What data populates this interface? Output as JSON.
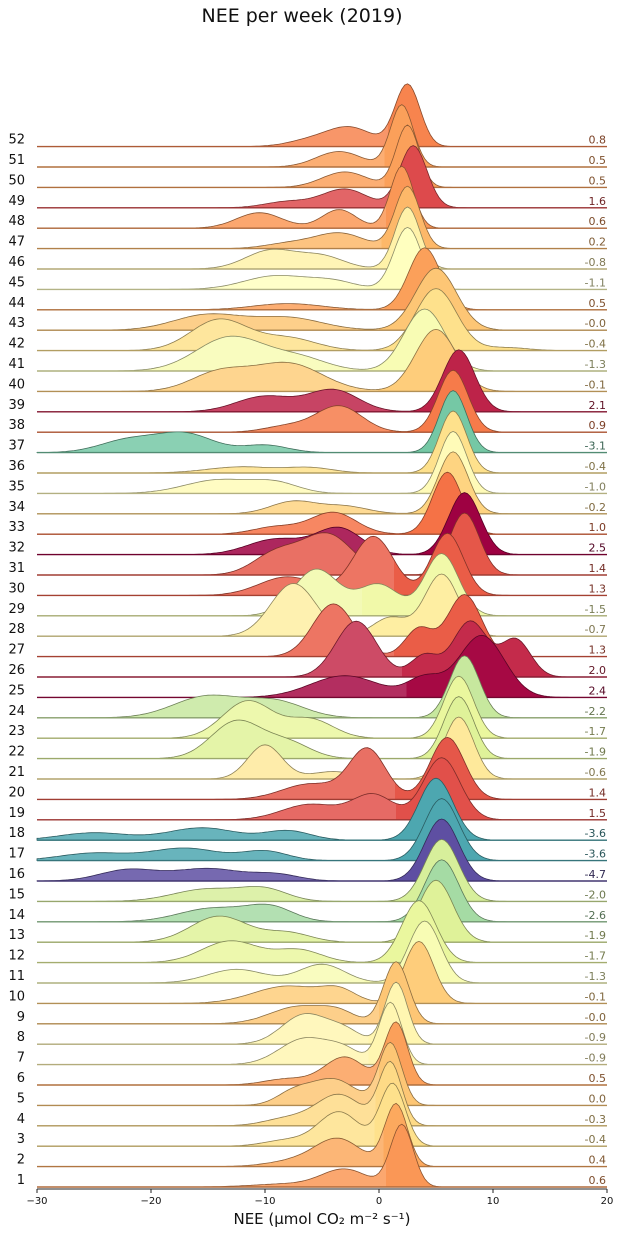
{
  "chart_data": {
    "type": "ridgeline",
    "title": "NEE per week (2019)",
    "xlabel": "NEE (μmol CO₂ m⁻² s⁻¹)",
    "xlim": [
      -30,
      20
    ],
    "x_ticks": [
      -30,
      -20,
      -10,
      0,
      10,
      20
    ],
    "colormap_range": [
      -4.7,
      2.5
    ],
    "weeks": [
      {
        "week": "1",
        "value": 0.6,
        "label": "0.6",
        "peaks": [
          [
            2.0,
            1.0,
            1.0
          ],
          [
            -3.0,
            0.28,
            2.0
          ],
          [
            -8.0,
            0.05,
            3.0
          ]
        ]
      },
      {
        "week": "2",
        "value": 0.4,
        "label": "0.4",
        "peaks": [
          [
            1.5,
            1.0,
            1.0
          ],
          [
            -3.5,
            0.42,
            2.0
          ],
          [
            -7.0,
            0.1,
            2.5
          ]
        ]
      },
      {
        "week": "3",
        "value": -0.4,
        "label": "-0.4",
        "peaks": [
          [
            1.2,
            1.0,
            1.1
          ],
          [
            -3.5,
            0.55,
            1.8
          ],
          [
            -8.0,
            0.1,
            2.0
          ]
        ]
      },
      {
        "week": "4",
        "value": -0.3,
        "label": "-0.3",
        "peaks": [
          [
            1.0,
            1.0,
            1.0
          ],
          [
            -3.5,
            0.5,
            2.0
          ],
          [
            -8.0,
            0.12,
            2.0
          ]
        ]
      },
      {
        "week": "5",
        "value": 0.0,
        "label": "0.0",
        "peaks": [
          [
            1.0,
            1.0,
            1.0
          ],
          [
            -4.0,
            0.42,
            2.0
          ],
          [
            -7.5,
            0.2,
            1.5
          ]
        ]
      },
      {
        "week": "6",
        "value": 0.5,
        "label": "0.5",
        "peaks": [
          [
            1.5,
            1.0,
            1.0
          ],
          [
            -3.0,
            0.45,
            1.8
          ],
          [
            -8.0,
            0.1,
            2.0
          ]
        ]
      },
      {
        "week": "7",
        "value": -0.9,
        "label": "-0.9",
        "peaks": [
          [
            1.0,
            1.0,
            1.0
          ],
          [
            -6.5,
            0.42,
            2.2
          ],
          [
            -3.0,
            0.2,
            1.5
          ]
        ]
      },
      {
        "week": "8",
        "value": -0.9,
        "label": "-0.9",
        "peaks": [
          [
            1.5,
            1.0,
            1.0
          ],
          [
            -6.5,
            0.48,
            2.0
          ],
          [
            -3.0,
            0.2,
            1.5
          ]
        ]
      },
      {
        "week": "9",
        "value": -0.0,
        "label": "-0.0",
        "peaks": [
          [
            1.5,
            1.0,
            1.1
          ],
          [
            -7.0,
            0.28,
            2.5
          ],
          [
            -3.5,
            0.15,
            1.5
          ]
        ]
      },
      {
        "week": "10",
        "value": -0.1,
        "label": "-0.1",
        "peaks": [
          [
            3.5,
            1.0,
            1.3
          ],
          [
            -8.0,
            0.28,
            3.0
          ],
          [
            -3.5,
            0.18,
            1.5
          ]
        ]
      },
      {
        "week": "11",
        "value": -1.3,
        "label": "-1.3",
        "peaks": [
          [
            4.0,
            1.0,
            1.4
          ],
          [
            -5.0,
            0.3,
            2.0
          ],
          [
            -12.5,
            0.22,
            2.5
          ]
        ]
      },
      {
        "week": "12",
        "value": -1.7,
        "label": "-1.7",
        "peaks": [
          [
            3.5,
            1.0,
            1.5
          ],
          [
            -13.0,
            0.35,
            2.5
          ],
          [
            -7.0,
            0.2,
            2.0
          ]
        ]
      },
      {
        "week": "13",
        "value": -1.9,
        "label": "-1.9",
        "peaks": [
          [
            5.0,
            1.0,
            1.5
          ],
          [
            -14.0,
            0.42,
            2.5
          ],
          [
            -8.0,
            0.15,
            2.0
          ]
        ]
      },
      {
        "week": "14",
        "value": -2.6,
        "label": "-2.6",
        "peaks": [
          [
            5.5,
            1.0,
            1.5
          ],
          [
            -14.5,
            0.22,
            3.0
          ],
          [
            -9.5,
            0.22,
            2.0
          ]
        ]
      },
      {
        "week": "15",
        "value": -2.0,
        "label": "-2.0",
        "peaks": [
          [
            5.5,
            1.0,
            1.5
          ],
          [
            -15.0,
            0.2,
            3.0
          ],
          [
            -10.0,
            0.18,
            2.0
          ]
        ]
      },
      {
        "week": "16",
        "value": -4.7,
        "label": "-4.7",
        "peaks": [
          [
            5.5,
            1.0,
            1.5
          ],
          [
            -22.0,
            0.18,
            2.5
          ],
          [
            -15.0,
            0.2,
            3.0
          ],
          [
            -9.0,
            0.1,
            2.0
          ]
        ]
      },
      {
        "week": "17",
        "value": -3.6,
        "label": "-3.6",
        "peaks": [
          [
            5.5,
            1.0,
            1.5
          ],
          [
            -25.0,
            0.12,
            3.0
          ],
          [
            -17.0,
            0.2,
            3.0
          ],
          [
            -10.0,
            0.15,
            2.0
          ]
        ]
      },
      {
        "week": "18",
        "value": -3.6,
        "label": "-3.6",
        "peaks": [
          [
            5.0,
            1.0,
            1.5
          ],
          [
            -25.0,
            0.12,
            3.0
          ],
          [
            -15.5,
            0.2,
            3.0
          ],
          [
            -8.0,
            0.15,
            2.0
          ]
        ]
      },
      {
        "week": "19",
        "value": 1.5,
        "label": "1.5",
        "peaks": [
          [
            5.5,
            1.0,
            1.6
          ],
          [
            -0.5,
            0.4,
            1.8
          ],
          [
            -6.0,
            0.25,
            2.5
          ]
        ]
      },
      {
        "week": "20",
        "value": 1.4,
        "label": "1.4",
        "peaks": [
          [
            6.0,
            1.0,
            1.5
          ],
          [
            -1.0,
            0.8,
            1.6
          ],
          [
            -6.0,
            0.25,
            2.5
          ]
        ]
      },
      {
        "week": "21",
        "value": -0.6,
        "label": "-0.6",
        "peaks": [
          [
            7.0,
            1.0,
            1.3
          ],
          [
            -10.0,
            0.55,
            1.5
          ],
          [
            -4.0,
            0.12,
            2.0
          ]
        ]
      },
      {
        "week": "22",
        "value": -1.9,
        "label": "-1.9",
        "peaks": [
          [
            7.0,
            1.0,
            1.3
          ],
          [
            -12.5,
            0.6,
            2.2
          ],
          [
            -8.0,
            0.25,
            2.0
          ]
        ]
      },
      {
        "week": "23",
        "value": -1.7,
        "label": "-1.7",
        "peaks": [
          [
            7.0,
            1.0,
            1.3
          ],
          [
            -11.5,
            0.6,
            2.2
          ],
          [
            -6.0,
            0.3,
            2.0
          ]
        ]
      },
      {
        "week": "24",
        "value": -2.2,
        "label": "-2.2",
        "peaks": [
          [
            7.5,
            1.0,
            1.3
          ],
          [
            -15.0,
            0.35,
            3.0
          ],
          [
            -9.0,
            0.25,
            2.5
          ]
        ]
      },
      {
        "week": "25",
        "value": 2.4,
        "label": "2.4",
        "peaks": [
          [
            9.0,
            1.0,
            2.0
          ],
          [
            -3.0,
            0.35,
            3.0
          ],
          [
            4.0,
            0.3,
            1.5
          ]
        ]
      },
      {
        "week": "26",
        "value": 2.0,
        "label": "2.0",
        "peaks": [
          [
            8.0,
            0.9,
            1.5
          ],
          [
            -2.0,
            0.9,
            1.8
          ],
          [
            12.0,
            0.6,
            1.3
          ],
          [
            4.0,
            0.35,
            1.2
          ]
        ]
      },
      {
        "week": "27",
        "value": 1.3,
        "label": "1.3",
        "peaks": [
          [
            7.5,
            1.0,
            1.5
          ],
          [
            -4.0,
            0.85,
            1.8
          ],
          [
            3.5,
            0.45,
            1.2
          ]
        ]
      },
      {
        "week": "28",
        "value": -0.7,
        "label": "-0.7",
        "peaks": [
          [
            5.5,
            1.0,
            1.5
          ],
          [
            -7.5,
            0.85,
            2.0
          ],
          [
            1.0,
            0.3,
            1.5
          ]
        ]
      },
      {
        "week": "29",
        "value": -1.5,
        "label": "-1.5",
        "peaks": [
          [
            5.5,
            1.0,
            1.5
          ],
          [
            -5.5,
            0.75,
            2.0
          ],
          [
            0.0,
            0.5,
            1.8
          ]
        ]
      },
      {
        "week": "30",
        "value": 1.3,
        "label": "1.3",
        "peaks": [
          [
            6.0,
            1.0,
            1.4
          ],
          [
            -0.5,
            0.95,
            1.8
          ],
          [
            -8.0,
            0.3,
            2.5
          ]
        ]
      },
      {
        "week": "31",
        "value": 1.4,
        "label": "1.4",
        "peaks": [
          [
            7.5,
            1.0,
            1.3
          ],
          [
            -4.5,
            0.65,
            2.2
          ],
          [
            -9.0,
            0.35,
            2.0
          ]
        ]
      },
      {
        "week": "32",
        "value": 2.5,
        "label": "2.5",
        "peaks": [
          [
            7.5,
            1.0,
            1.4
          ],
          [
            -3.5,
            0.42,
            2.0
          ],
          [
            -9.0,
            0.25,
            2.5
          ]
        ]
      },
      {
        "week": "33",
        "value": 1.0,
        "label": "1.0",
        "peaks": [
          [
            6.0,
            1.0,
            1.3
          ],
          [
            -4.0,
            0.35,
            2.0
          ],
          [
            -9.0,
            0.12,
            2.0
          ]
        ]
      },
      {
        "week": "34",
        "value": -0.2,
        "label": "-0.2",
        "peaks": [
          [
            6.5,
            1.0,
            1.3
          ],
          [
            -7.5,
            0.2,
            2.0
          ],
          [
            -3.0,
            0.12,
            2.0
          ]
        ]
      },
      {
        "week": "35",
        "value": -1.0,
        "label": "-1.0",
        "peaks": [
          [
            6.5,
            1.0,
            1.2
          ],
          [
            -14.0,
            0.22,
            3.0
          ],
          [
            -9.0,
            0.15,
            2.0
          ]
        ]
      },
      {
        "week": "36",
        "value": -0.4,
        "label": "-0.4",
        "peaks": [
          [
            6.5,
            1.0,
            1.2
          ],
          [
            -12.0,
            0.1,
            3.0
          ],
          [
            -6.0,
            0.08,
            2.0
          ]
        ]
      },
      {
        "week": "37",
        "value": -3.1,
        "label": "-3.1",
        "peaks": [
          [
            6.5,
            1.0,
            1.2
          ],
          [
            -17.0,
            0.3,
            2.5
          ],
          [
            -22.0,
            0.2,
            2.5
          ],
          [
            -10.0,
            0.12,
            2.0
          ]
        ]
      },
      {
        "week": "38",
        "value": 0.9,
        "label": "0.9",
        "peaks": [
          [
            6.5,
            1.0,
            1.3
          ],
          [
            -3.5,
            0.42,
            2.0
          ],
          [
            -8.0,
            0.1,
            2.0
          ]
        ]
      },
      {
        "week": "39",
        "value": 2.1,
        "label": "2.1",
        "peaks": [
          [
            7.0,
            1.0,
            1.4
          ],
          [
            -4.0,
            0.35,
            2.2
          ],
          [
            -10.0,
            0.25,
            2.5
          ]
        ]
      },
      {
        "week": "40",
        "value": -0.1,
        "label": "-0.1",
        "peaks": [
          [
            5.0,
            1.0,
            1.8
          ],
          [
            -8.0,
            0.45,
            3.0
          ],
          [
            -14.0,
            0.3,
            2.5
          ]
        ]
      },
      {
        "week": "41",
        "value": -1.3,
        "label": "-1.3",
        "peaks": [
          [
            4.0,
            1.0,
            1.8
          ],
          [
            -13.0,
            0.55,
            3.0
          ],
          [
            -7.0,
            0.2,
            2.5
          ]
        ]
      },
      {
        "week": "42",
        "value": -0.4,
        "label": "-0.4",
        "peaks": [
          [
            5.0,
            1.0,
            1.8
          ],
          [
            -14.0,
            0.5,
            2.5
          ],
          [
            -8.0,
            0.2,
            2.5
          ],
          [
            11.0,
            0.05,
            2.0
          ]
        ]
      },
      {
        "week": "43",
        "value": -0.0,
        "label": "-0.0",
        "peaks": [
          [
            5.0,
            1.0,
            1.8
          ],
          [
            -15.0,
            0.25,
            3.0
          ],
          [
            -8.0,
            0.2,
            3.0
          ]
        ]
      },
      {
        "week": "44",
        "value": 0.5,
        "label": "0.5",
        "peaks": [
          [
            4.0,
            1.0,
            1.4
          ],
          [
            -8.0,
            0.1,
            3.0
          ]
        ]
      },
      {
        "week": "45",
        "value": -1.1,
        "label": "-1.1",
        "peaks": [
          [
            2.5,
            1.0,
            1.2
          ],
          [
            -9.0,
            0.22,
            2.8
          ],
          [
            -4.0,
            0.12,
            2.0
          ]
        ]
      },
      {
        "week": "46",
        "value": -0.8,
        "label": "-0.8",
        "peaks": [
          [
            2.5,
            1.0,
            1.1
          ],
          [
            -9.5,
            0.3,
            2.2
          ],
          [
            -5.0,
            0.2,
            2.0
          ]
        ]
      },
      {
        "week": "47",
        "value": 0.2,
        "label": "0.2",
        "peaks": [
          [
            2.5,
            1.0,
            1.1
          ],
          [
            -3.5,
            0.25,
            2.2
          ],
          [
            -8.0,
            0.08,
            2.0
          ]
        ]
      },
      {
        "week": "48",
        "value": 0.6,
        "label": "0.6",
        "peaks": [
          [
            2.0,
            1.0,
            1.0
          ],
          [
            -3.5,
            0.3,
            1.5
          ],
          [
            -10.5,
            0.25,
            2.0
          ]
        ]
      },
      {
        "week": "49",
        "value": 1.6,
        "label": "1.6",
        "peaks": [
          [
            3.0,
            1.0,
            1.2
          ],
          [
            -3.0,
            0.3,
            2.0
          ],
          [
            -8.0,
            0.1,
            2.0
          ]
        ]
      },
      {
        "week": "50",
        "value": 0.5,
        "label": "0.5",
        "peaks": [
          [
            2.5,
            1.0,
            1.0
          ],
          [
            -3.0,
            0.25,
            2.0
          ]
        ]
      },
      {
        "week": "51",
        "value": 0.5,
        "label": "0.5",
        "peaks": [
          [
            2.0,
            1.0,
            1.0
          ],
          [
            -3.5,
            0.25,
            2.0
          ]
        ]
      },
      {
        "week": "52",
        "value": 0.8,
        "label": "0.8",
        "peaks": [
          [
            2.5,
            1.0,
            1.1
          ],
          [
            -2.5,
            0.3,
            2.0
          ],
          [
            -6.0,
            0.1,
            2.0
          ]
        ]
      }
    ]
  }
}
